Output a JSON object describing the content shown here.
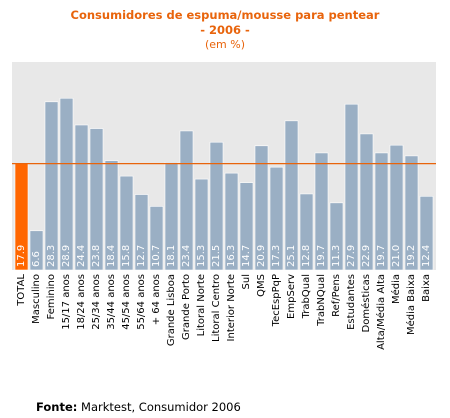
{
  "chart_data": {
    "type": "bar",
    "title": "Consumidores de espuma/mousse para pentear",
    "subtitle": "- 2006 -",
    "unit_note": "(em %)",
    "xlabel": "",
    "ylabel": "",
    "ylim": [
      0,
      35
    ],
    "grid": false,
    "legend": "none",
    "reference_line": 17.9,
    "colors": {
      "bar": "#9aafc4",
      "total_bar": "#ff6600",
      "reference": "#e8640c",
      "plot_bg": "#e8e8e8",
      "value_text": "#ffffff"
    },
    "categories": [
      "TOTAL",
      "Masculino",
      "Feminino",
      "15/17 anos",
      "18/24 anos",
      "25/34 anos",
      "35/44 anos",
      "45/54 anos",
      "55/64 anos",
      "+ 64 anos",
      "Grande Lisboa",
      "Grande Porto",
      "Litoral Norte",
      "Litoral Centro",
      "Interior Norte",
      "Sul",
      "QMS",
      "TecEspPqP",
      "EmpServ",
      "TrabQual",
      "TrabNQual",
      "Ref/Pens",
      "Estudantes",
      "Domésticas",
      "Alta/Média Alta",
      "Média",
      "Média Baixa",
      "Baixa"
    ],
    "values": [
      17.9,
      6.6,
      28.3,
      28.9,
      24.4,
      23.8,
      18.4,
      15.8,
      12.7,
      10.7,
      18.1,
      23.4,
      15.3,
      21.5,
      16.3,
      14.7,
      20.9,
      17.3,
      25.1,
      12.8,
      19.7,
      11.3,
      27.9,
      22.9,
      19.7,
      21.0,
      19.2,
      12.4
    ],
    "value_labels": [
      "17.9",
      "6.6",
      "28.3",
      "28.9",
      "24.4",
      "23.8",
      "18.4",
      "15.8",
      "12.7",
      "10.7",
      "18.1",
      "23.4",
      "15.3",
      "21.5",
      "16.3",
      "14.7",
      "20.9",
      "17.3",
      "25.1",
      "12.8",
      "19.7",
      "11.3",
      "27.9",
      "22.9",
      "19.7",
      "21.0",
      "19.2",
      "12.4"
    ]
  },
  "source": {
    "label": "Fonte:",
    "text": "Marktest, Consumidor 2006"
  }
}
